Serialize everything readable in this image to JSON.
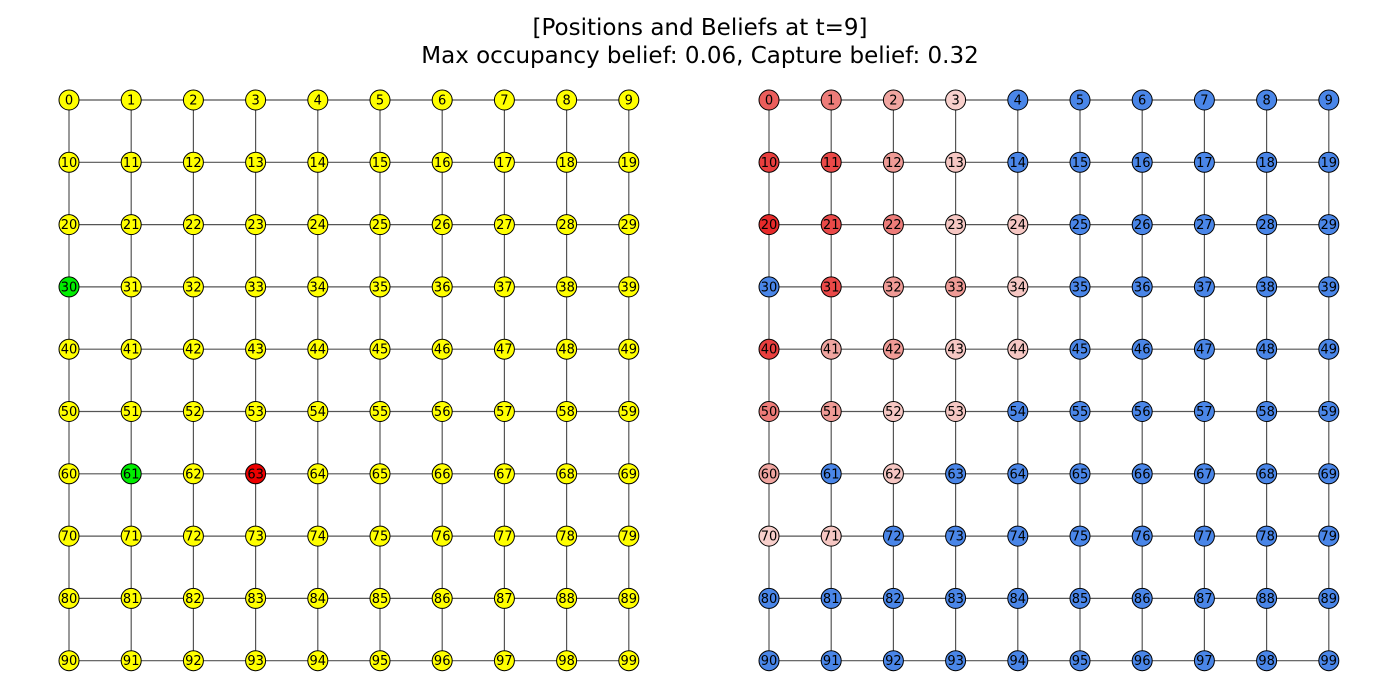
{
  "title": {
    "line1": "[Positions and Beliefs at t=9]",
    "line2": "Max occupancy belief: 0.06, Capture belief: 0.32"
  },
  "colors": {
    "default_node": "#ffff00",
    "pursuer": "#00ee00",
    "evader": "#ee0000",
    "zero_belief": "#4a86e8",
    "belief_red": "#e82a2a",
    "belief_pink": "#f0a5a0",
    "belief_light": "#f9d8d5"
  },
  "grid": {
    "rows": 10,
    "cols": 10
  },
  "panels": [
    {
      "name": "positions",
      "node_colors": {
        "30": "pursuer",
        "61": "pursuer",
        "63": "evader"
      }
    },
    {
      "name": "beliefs",
      "node_belief_levels": {
        "0": 0.75,
        "1": 0.6,
        "2": 0.4,
        "3": 0.15,
        "10": 0.9,
        "11": 0.85,
        "12": 0.45,
        "13": 0.2,
        "20": 1.0,
        "21": 0.85,
        "22": 0.6,
        "23": 0.2,
        "24": 0.2,
        "31": 0.85,
        "32": 0.45,
        "33": 0.45,
        "34": 0.2,
        "40": 0.9,
        "41": 0.4,
        "42": 0.45,
        "43": 0.2,
        "44": 0.2,
        "50": 0.6,
        "51": 0.45,
        "52": 0.2,
        "53": 0.2,
        "60": 0.4,
        "62": 0.2,
        "70": 0.15,
        "71": 0.2
      }
    }
  ]
}
